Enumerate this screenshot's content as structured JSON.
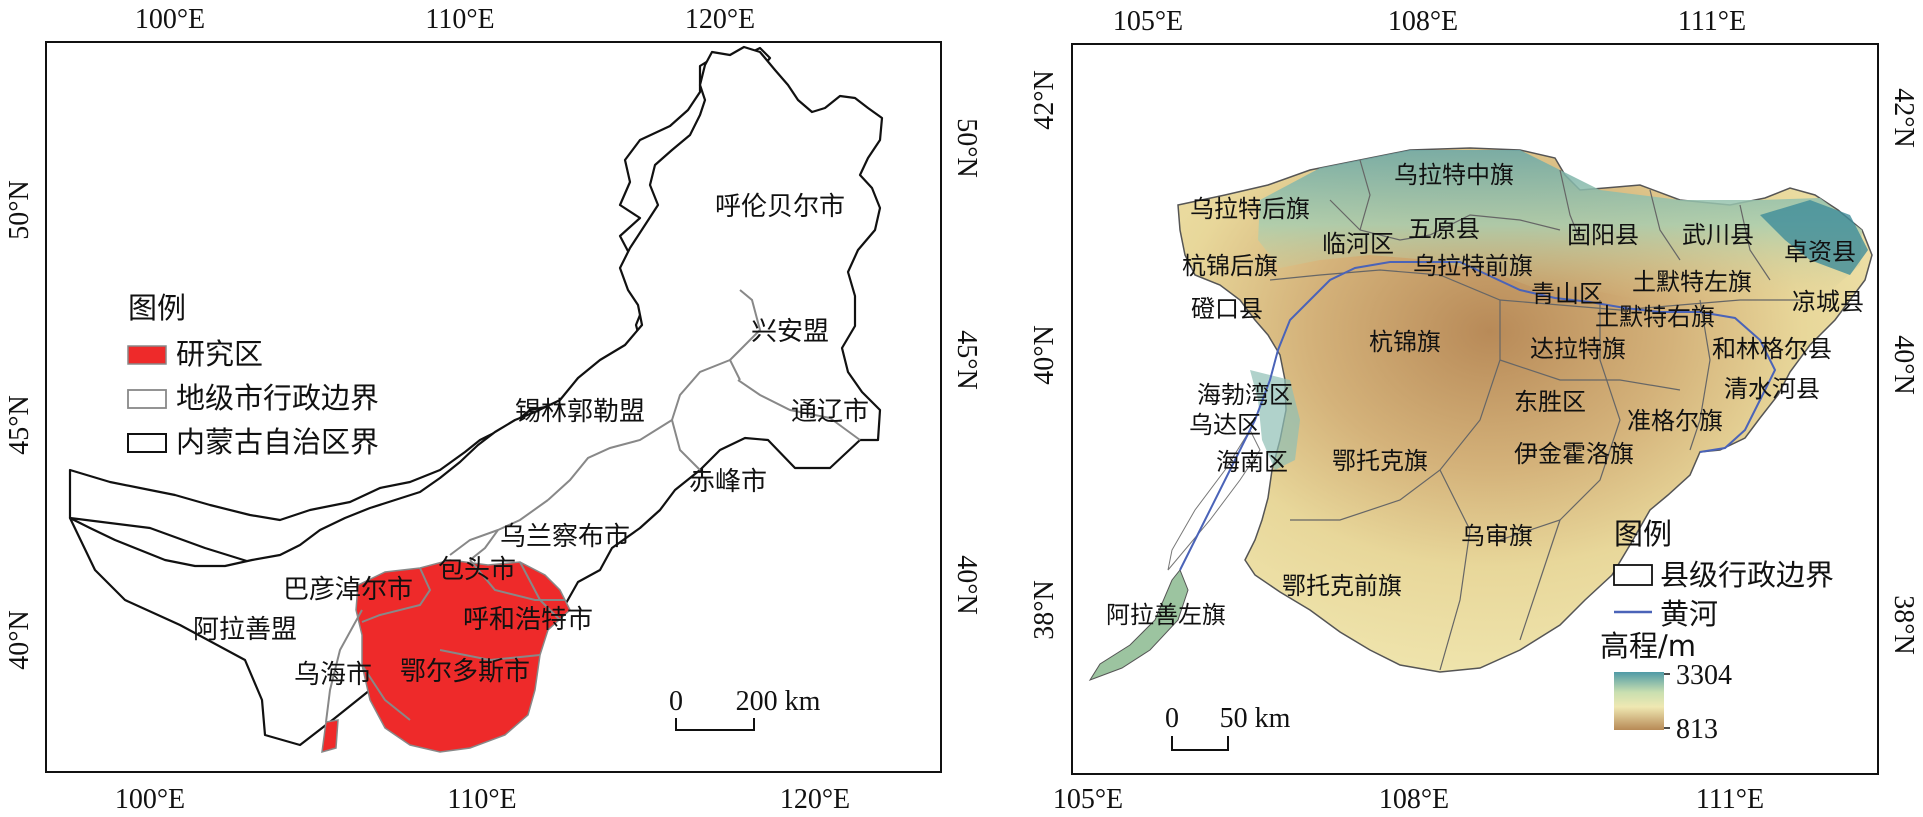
{
  "left_map": {
    "lon_ticks": [
      "100°E",
      "110°E",
      "120°E"
    ],
    "lat_ticks": [
      "40°N",
      "45°N",
      "50°N"
    ],
    "regions": [
      "呼伦贝尔市",
      "兴安盟",
      "通辽市",
      "赤峰市",
      "锡林郭勒盟",
      "乌兰察布市",
      "包头市",
      "呼和浩特市",
      "巴彦淖尔市",
      "鄂尔多斯市",
      "乌海市",
      "阿拉善盟"
    ],
    "legend": {
      "title": "图例",
      "items": [
        "研究区",
        "地级市行政边界",
        "内蒙古自治区界"
      ]
    },
    "scalebar": {
      "zero": "0",
      "value": "200 km"
    },
    "colors": {
      "study_area": "#ee2a2a",
      "city_boundary": "#888888",
      "province_boundary": "#111111"
    }
  },
  "right_map": {
    "lon_ticks": [
      "105°E",
      "108°E",
      "111°E"
    ],
    "lat_ticks": [
      "38°N",
      "40°N",
      "42°N"
    ],
    "counties": [
      "乌拉特中旗",
      "乌拉特后旗",
      "临河区",
      "五原县",
      "固阳县",
      "武川县",
      "卓资县",
      "杭锦后旗",
      "乌拉特前旗",
      "青山区",
      "土默特左旗",
      "凉城县",
      "磴口县",
      "土默特右旗",
      "杭锦旗",
      "达拉特旗",
      "和林格尔县",
      "海勃湾区",
      "东胜区",
      "清水河县",
      "乌达区",
      "准格尔旗",
      "海南区",
      "鄂托克旗",
      "伊金霍洛旗",
      "乌审旗",
      "鄂托克前旗",
      "阿拉善左旗"
    ],
    "legend": {
      "title": "图例",
      "items": [
        "县级行政边界",
        "黄河"
      ],
      "elevation_title": "高程/m",
      "elevation_max": "3304",
      "elevation_min": "813"
    },
    "scalebar": {
      "zero": "0",
      "value": "50 km"
    },
    "colors": {
      "high": "#4f9aa6",
      "mid_high": "#c9dfb0",
      "mid": "#efe8b2",
      "low": "#b78a56",
      "river": "#4a63b8"
    }
  }
}
